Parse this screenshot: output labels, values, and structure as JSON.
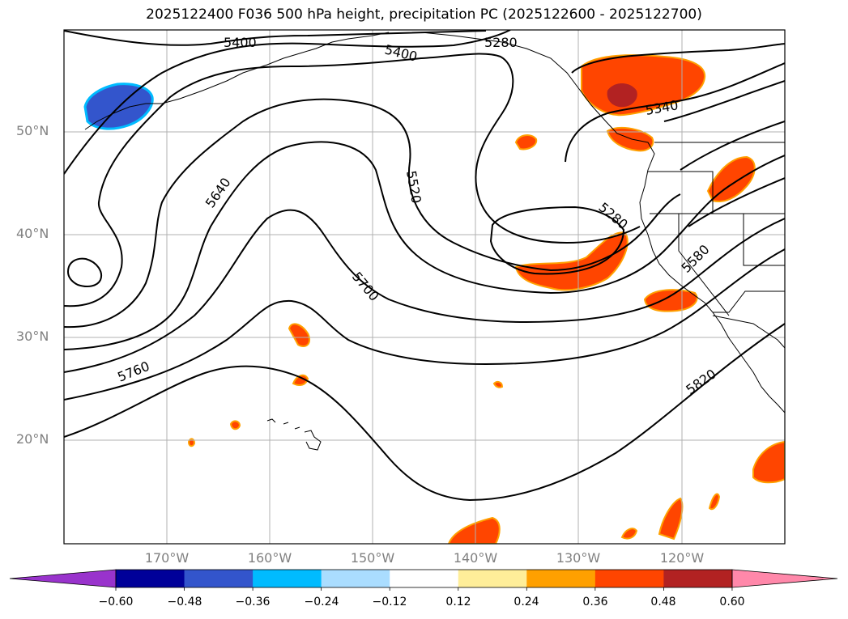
{
  "title": "2025122400 F036 500 hPa height, precipitation PC (2025122600 - 2025122700)",
  "lat_labels": [
    "50°N",
    "40°N",
    "30°N",
    "20°N"
  ],
  "lon_labels": [
    "170°W",
    "160°W",
    "150°W",
    "140°W",
    "130°W",
    "120°W"
  ],
  "contour_labels": [
    "5400",
    "5400",
    "5280",
    "5340",
    "5520",
    "5640",
    "5280",
    "5580",
    "5700",
    "5760",
    "5820"
  ],
  "colorbar": {
    "ticks": [
      "−0.60",
      "−0.48",
      "−0.36",
      "−0.24",
      "−0.12",
      "0.12",
      "0.24",
      "0.36",
      "0.48",
      "0.60"
    ],
    "colors": [
      "#9933cc",
      "#000099",
      "#3355cc",
      "#00bbff",
      "#aaddff",
      "#ffffff",
      "#ffee99",
      "#ffa000",
      "#ff4500",
      "#b22222",
      "#ff88aa"
    ]
  },
  "chart_data": {
    "type": "map",
    "title": "2025122400 F036 500 hPa height, precipitation PC (2025122600 - 2025122700)",
    "projection": "lat-lon",
    "lon_range": [
      -180,
      -110
    ],
    "lat_range": [
      10,
      60
    ],
    "field_contours": "500 hPa height (m)",
    "contour_levels": [
      5280,
      5340,
      5400,
      5460,
      5520,
      5580,
      5640,
      5700,
      5760,
      5820
    ],
    "shaded_field": "precipitation PC",
    "colorbar_bounds": [
      -0.6,
      -0.48,
      -0.36,
      -0.24,
      -0.12,
      0.12,
      0.24,
      0.36,
      0.48,
      0.6
    ]
  }
}
